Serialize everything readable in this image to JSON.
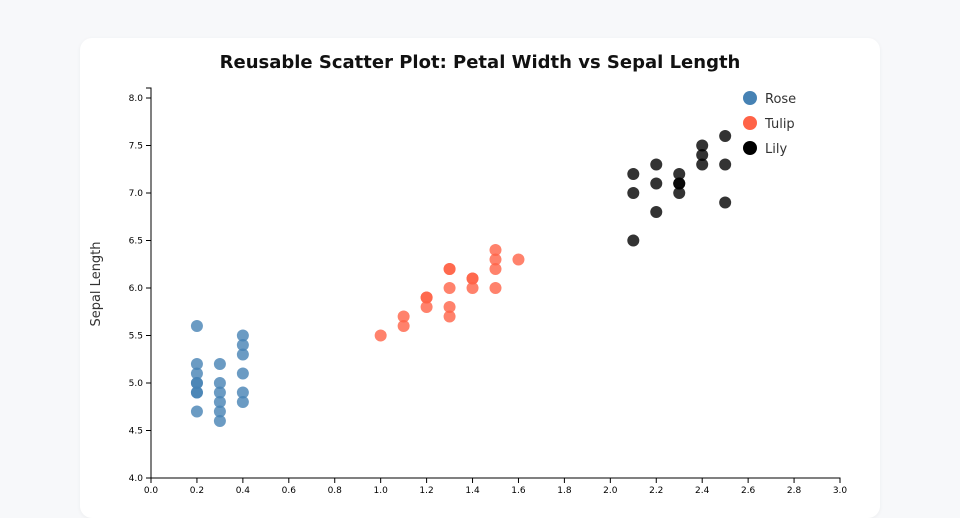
{
  "chart_data": {
    "type": "scatter",
    "title": "Reusable Scatter Plot: Petal Width vs Sepal Length",
    "xlabel": "",
    "ylabel": "Sepal Length",
    "xlim": [
      0,
      3.0
    ],
    "ylim": [
      4.0,
      8.0
    ],
    "xticks": [
      "0.0",
      "0.2",
      "0.4",
      "0.6",
      "0.8",
      "1.0",
      "1.2",
      "1.4",
      "1.6",
      "1.8",
      "2.0",
      "2.2",
      "2.4",
      "2.6",
      "2.8",
      "3.0"
    ],
    "yticks": [
      "4.0",
      "4.5",
      "5.0",
      "5.5",
      "6.0",
      "6.5",
      "7.0",
      "7.5",
      "8.0"
    ],
    "grid": false,
    "legend_position": "top-right",
    "series": [
      {
        "name": "Rose",
        "color": "#4682b4",
        "points": [
          [
            0.2,
            5.6
          ],
          [
            0.2,
            5.2
          ],
          [
            0.2,
            5.1
          ],
          [
            0.2,
            5.0
          ],
          [
            0.2,
            5.0
          ],
          [
            0.2,
            4.9
          ],
          [
            0.2,
            4.9
          ],
          [
            0.2,
            4.7
          ],
          [
            0.3,
            5.2
          ],
          [
            0.3,
            5.0
          ],
          [
            0.3,
            4.9
          ],
          [
            0.3,
            4.8
          ],
          [
            0.3,
            4.7
          ],
          [
            0.3,
            4.6
          ],
          [
            0.4,
            5.5
          ],
          [
            0.4,
            5.4
          ],
          [
            0.4,
            5.3
          ],
          [
            0.4,
            5.1
          ],
          [
            0.4,
            4.9
          ],
          [
            0.4,
            4.8
          ]
        ]
      },
      {
        "name": "Tulip",
        "color": "#ff6347",
        "points": [
          [
            1.0,
            5.5
          ],
          [
            1.1,
            5.7
          ],
          [
            1.1,
            5.6
          ],
          [
            1.2,
            5.9
          ],
          [
            1.2,
            5.9
          ],
          [
            1.2,
            5.8
          ],
          [
            1.3,
            6.2
          ],
          [
            1.3,
            6.2
          ],
          [
            1.3,
            6.0
          ],
          [
            1.3,
            5.8
          ],
          [
            1.3,
            5.7
          ],
          [
            1.4,
            6.1
          ],
          [
            1.4,
            6.1
          ],
          [
            1.4,
            6.0
          ],
          [
            1.5,
            6.4
          ],
          [
            1.5,
            6.3
          ],
          [
            1.5,
            6.2
          ],
          [
            1.5,
            6.0
          ],
          [
            1.6,
            6.3
          ]
        ]
      },
      {
        "name": "Lily",
        "color": "#000000",
        "points": [
          [
            2.1,
            7.2
          ],
          [
            2.1,
            7.0
          ],
          [
            2.1,
            6.5
          ],
          [
            2.2,
            7.3
          ],
          [
            2.2,
            7.1
          ],
          [
            2.2,
            6.8
          ],
          [
            2.3,
            7.2
          ],
          [
            2.3,
            7.1
          ],
          [
            2.3,
            7.1
          ],
          [
            2.3,
            7.0
          ],
          [
            2.4,
            7.5
          ],
          [
            2.4,
            7.4
          ],
          [
            2.4,
            7.3
          ],
          [
            2.5,
            7.6
          ],
          [
            2.5,
            7.3
          ],
          [
            2.5,
            6.9
          ]
        ]
      }
    ]
  }
}
